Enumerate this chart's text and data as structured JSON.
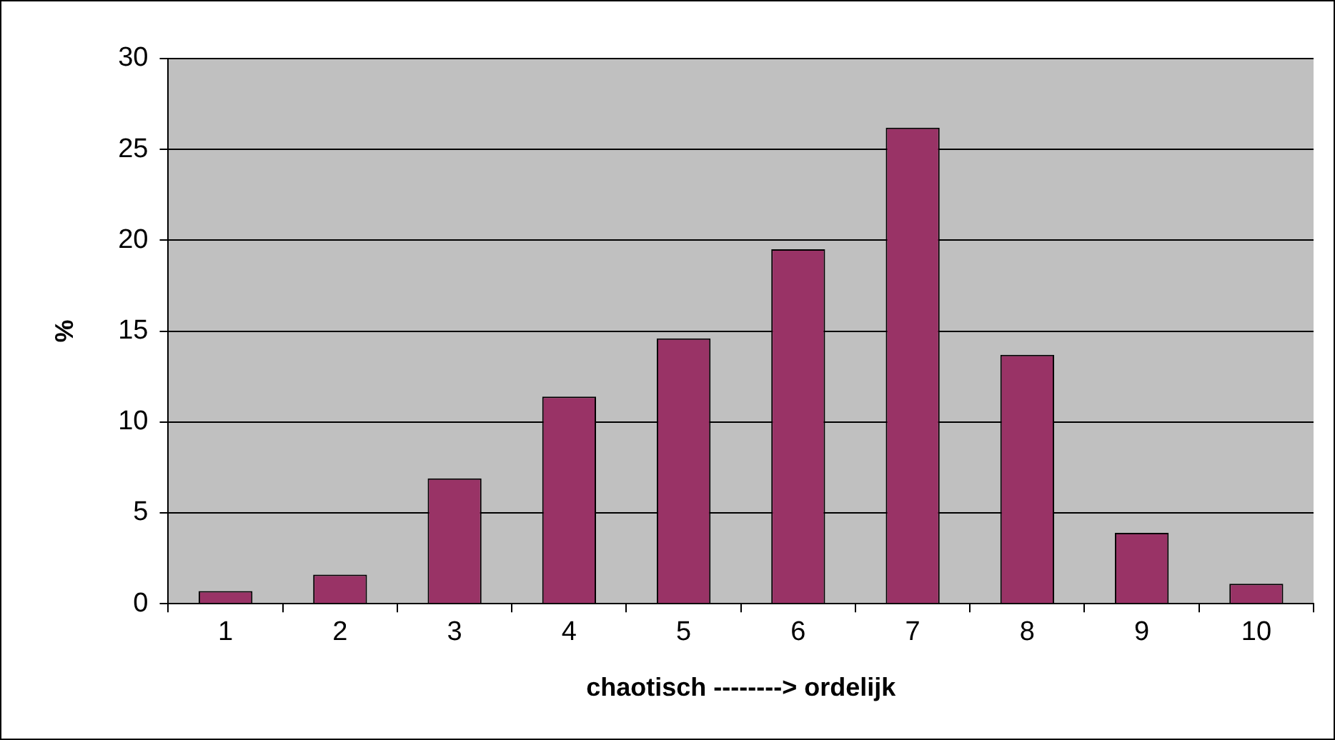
{
  "chart_data": {
    "type": "bar",
    "xlabel": "chaotisch --------> ordelijk",
    "ylabel": "%",
    "categories": [
      "1",
      "2",
      "3",
      "4",
      "5",
      "6",
      "7",
      "8",
      "9",
      "10"
    ],
    "values": [
      0.7,
      1.6,
      6.9,
      11.4,
      14.6,
      19.5,
      26.2,
      13.7,
      3.9,
      1.1
    ],
    "color": "#993366",
    "ylim": [
      0,
      30
    ],
    "yticks": [
      0,
      5,
      10,
      15,
      20,
      25,
      30
    ],
    "grid": "y",
    "legend": false
  }
}
